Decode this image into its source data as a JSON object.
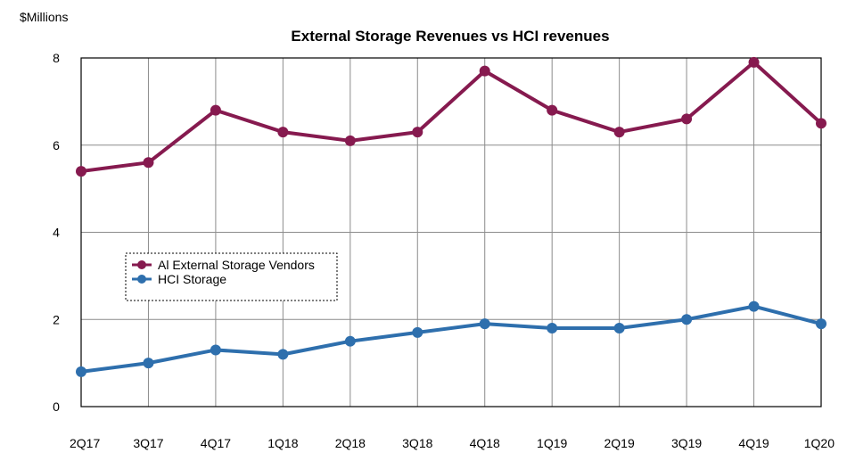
{
  "chart_data": {
    "type": "line",
    "title": "External Storage Revenues vs HCI revenues",
    "ylabel": "$Millions",
    "xlabel": "",
    "categories": [
      "2Q17",
      "3Q17",
      "4Q17",
      "1Q18",
      "2Q18",
      "3Q18",
      "4Q18",
      "1Q19",
      "2Q19",
      "3Q19",
      "4Q19",
      "1Q20"
    ],
    "ylim": [
      0,
      8
    ],
    "yticks": [
      0,
      2,
      4,
      6,
      8
    ],
    "grid": true,
    "legend_position": "left-middle",
    "series": [
      {
        "name": "Al External Storage Vendors",
        "color": "#861a4f",
        "values": [
          5.4,
          5.6,
          6.8,
          6.3,
          6.1,
          6.3,
          7.7,
          6.8,
          6.3,
          6.6,
          7.9,
          6.5
        ]
      },
      {
        "name": "HCI Storage",
        "color": "#2e6fad",
        "values": [
          0.8,
          1.0,
          1.3,
          1.2,
          1.5,
          1.7,
          1.9,
          1.8,
          1.8,
          2.0,
          2.3,
          1.9
        ]
      }
    ]
  }
}
